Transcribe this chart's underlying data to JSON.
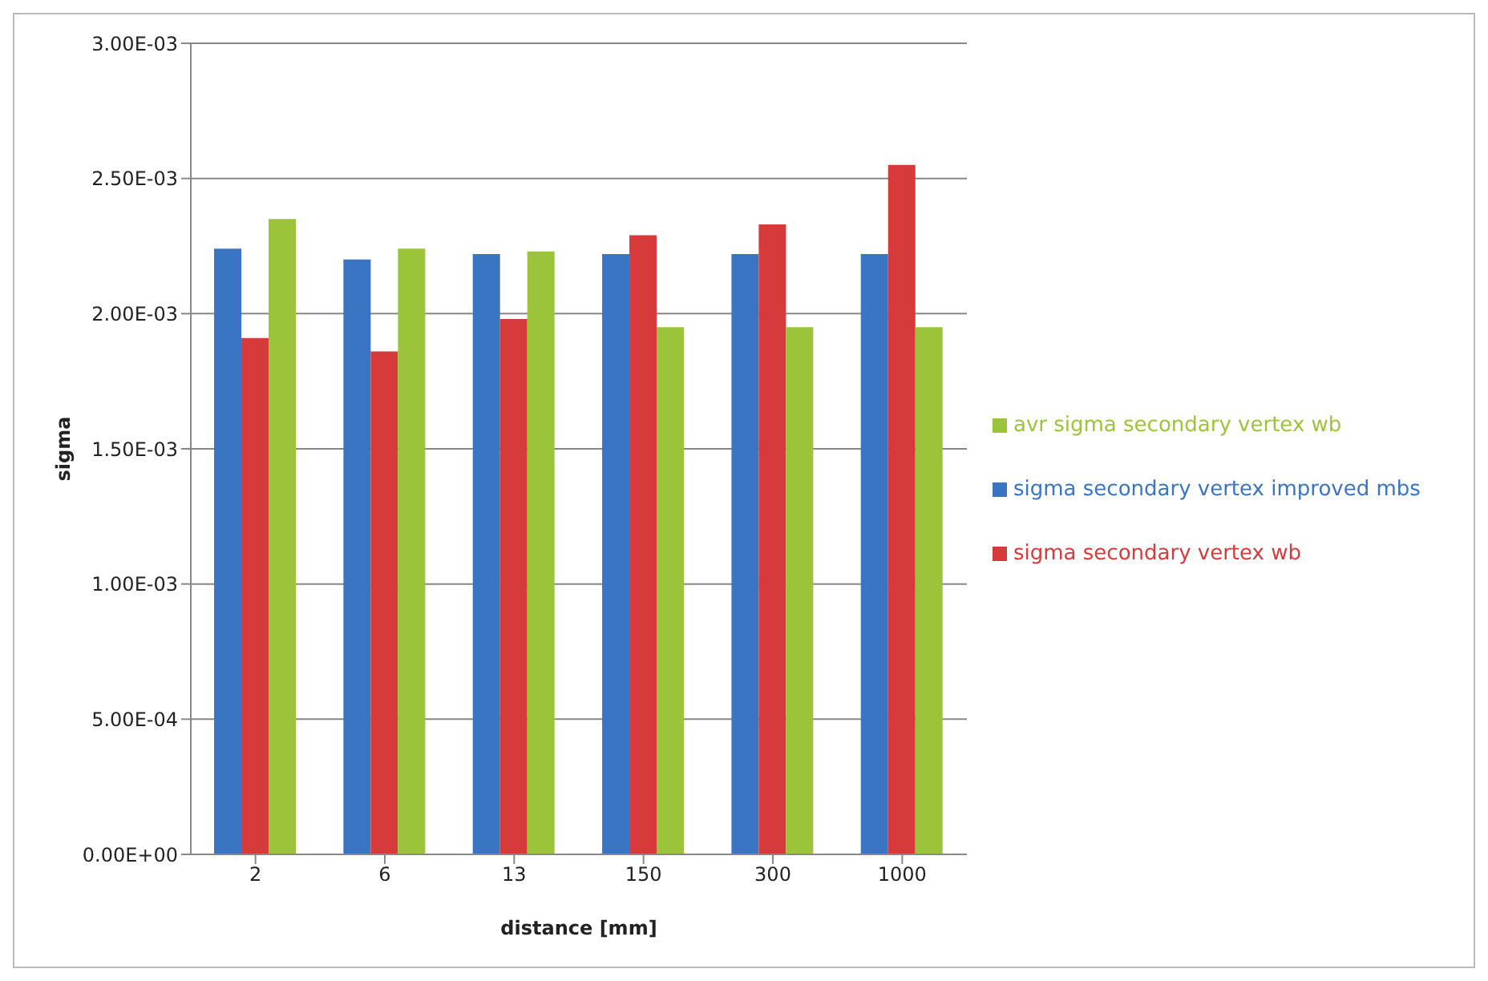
{
  "chart_data": {
    "type": "bar",
    "xlabel": "distance [mm]",
    "ylabel": "sigma",
    "categories": [
      "2",
      "6",
      "13",
      "150",
      "300",
      "1000"
    ],
    "series": [
      {
        "name": "sigma secondary vertex improved mbs",
        "color": "#3a75c4",
        "values": [
          0.00224,
          0.0022,
          0.00222,
          0.00222,
          0.00222,
          0.00222
        ]
      },
      {
        "name": "sigma secondary vertex wb",
        "color": "#d63a3a",
        "values": [
          0.00191,
          0.00186,
          0.00198,
          0.00229,
          0.00233,
          0.00255
        ]
      },
      {
        "name": "avr sigma secondary vertex wb",
        "color": "#9cc43a",
        "values": [
          0.00235,
          0.00224,
          0.00223,
          0.00195,
          0.00195,
          0.00195
        ]
      }
    ],
    "ylim": [
      0,
      0.003
    ],
    "yticks": [
      {
        "value": 0,
        "label": "0.00E+00"
      },
      {
        "value": 0.0005,
        "label": "5.00E-04"
      },
      {
        "value": 0.001,
        "label": "1.00E-03"
      },
      {
        "value": 0.0015,
        "label": "1.50E-03"
      },
      {
        "value": 0.002,
        "label": "2.00E-03"
      },
      {
        "value": 0.0025,
        "label": "2.50E-03"
      },
      {
        "value": 0.003,
        "label": "3.00E-03"
      }
    ],
    "grid": "y",
    "legend": "right"
  }
}
